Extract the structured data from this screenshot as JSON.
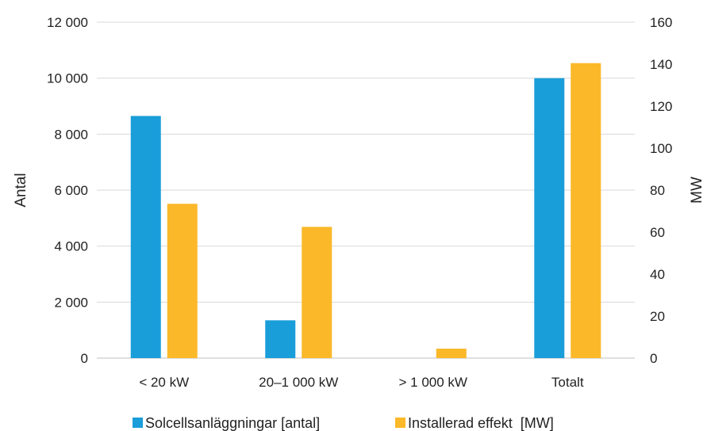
{
  "chart_data": {
    "type": "bar",
    "title": "",
    "categories": [
      "< 20 kW",
      "20–1 000 kW",
      "> 1 000 kW",
      "Totalt"
    ],
    "series": [
      {
        "name": "Solcellsanläggningar [antal]",
        "axis": "left",
        "color": "#1a9ed9",
        "values": [
          8650,
          1350,
          0,
          10000
        ]
      },
      {
        "name": "Installerad effekt  [MW]",
        "axis": "right",
        "color": "#fbb829",
        "values": [
          73.5,
          62.5,
          4.5,
          140.5
        ]
      }
    ],
    "y_left": {
      "label": "Antal",
      "ylim": [
        0,
        12000
      ],
      "ticks": [
        "0",
        "2 000",
        "4 000",
        "6 000",
        "8 000",
        "10 000",
        "12 000"
      ]
    },
    "y_right": {
      "label": "MW",
      "ylim": [
        0,
        160
      ],
      "ticks": [
        "0",
        "20",
        "40",
        "60",
        "80",
        "100",
        "120",
        "140",
        "160"
      ]
    },
    "xlabel": "",
    "grid": true,
    "legend_position": "bottom"
  }
}
